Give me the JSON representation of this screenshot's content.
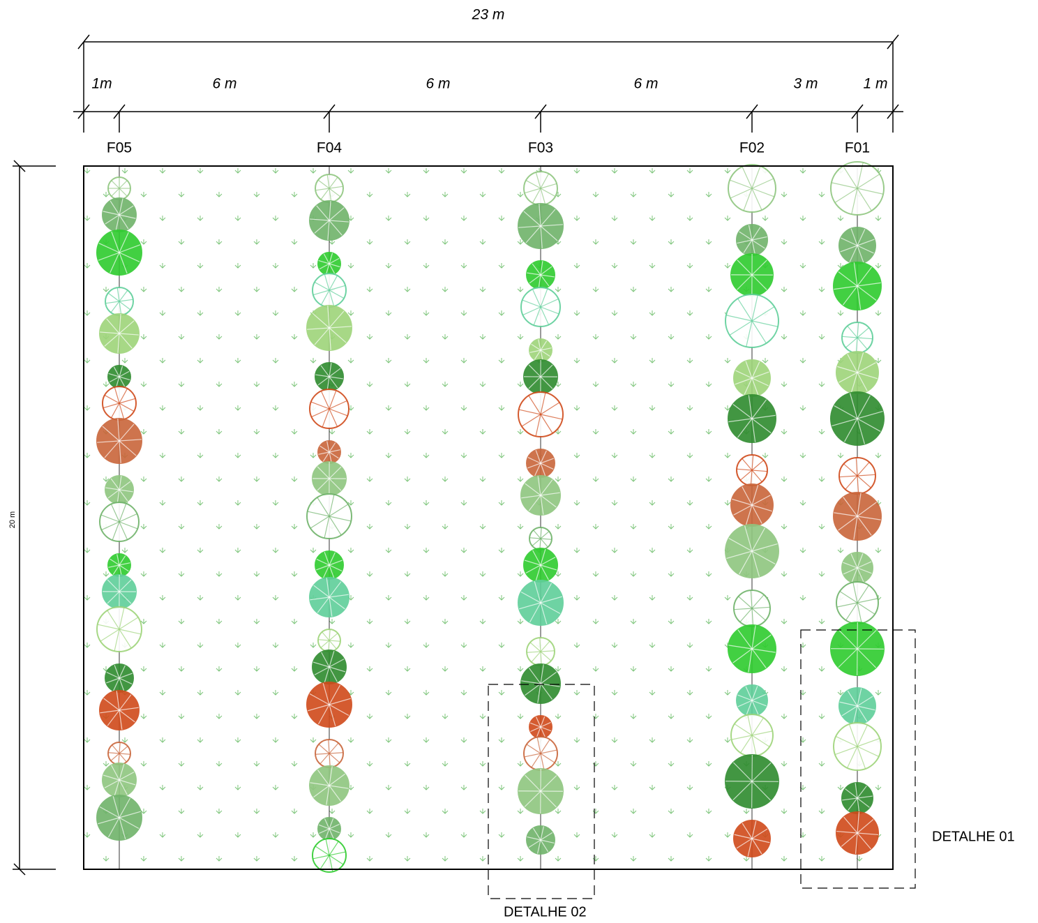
{
  "dimensions": {
    "total": "23 m",
    "segments": [
      "1m",
      "6 m",
      "6 m",
      "6 m",
      "3 m",
      "1 m"
    ],
    "height": "20 m"
  },
  "rows": [
    "F05",
    "F04",
    "F03",
    "F02",
    "F01"
  ],
  "details": [
    "DETALHE 01",
    "DETALHE 02"
  ]
}
